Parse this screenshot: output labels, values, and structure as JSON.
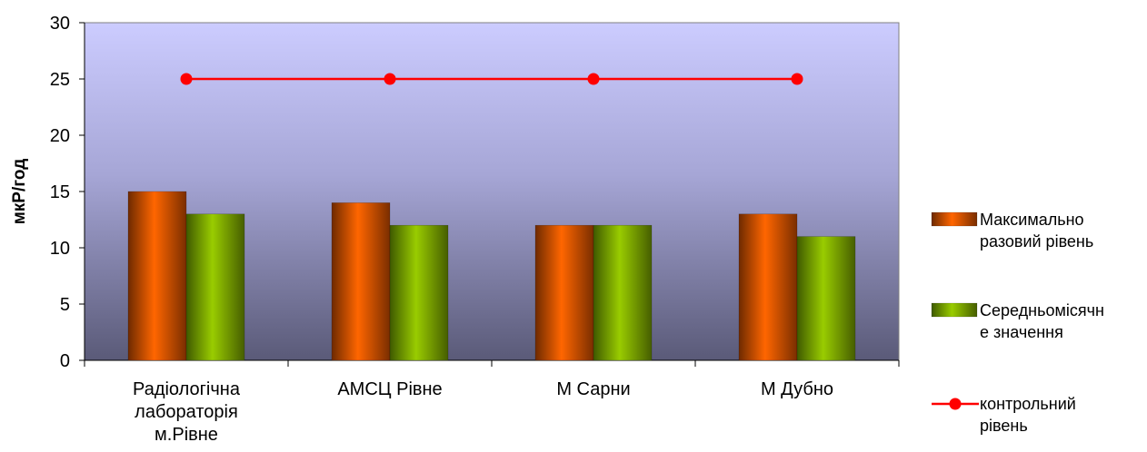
{
  "chart_data": {
    "type": "bar",
    "title": "",
    "xlabel": "",
    "ylabel": "мкР/год",
    "ylim": [
      0,
      30
    ],
    "yticks": [
      0,
      5,
      10,
      15,
      20,
      25,
      30
    ],
    "categories": [
      [
        "Радіологічна",
        "лабораторія",
        "м.Рівне"
      ],
      [
        "АМСЦ Рівне"
      ],
      [
        "М Сарни"
      ],
      [
        "М Дубно"
      ]
    ],
    "series": [
      {
        "name": [
          "Максимально",
          "разовий рівень"
        ],
        "type": "bar",
        "color": "#ff6600",
        "values": [
          15,
          14,
          12,
          13
        ]
      },
      {
        "name": [
          "Середньомісячн",
          "е значення"
        ],
        "type": "bar",
        "color": "#99cc00",
        "values": [
          13,
          12,
          12,
          11
        ]
      },
      {
        "name": [
          "контрольний",
          "рівень"
        ],
        "type": "line",
        "color": "#ff0000",
        "values": [
          25,
          25,
          25,
          25
        ]
      }
    ],
    "legend_position": "right",
    "grid": false
  }
}
